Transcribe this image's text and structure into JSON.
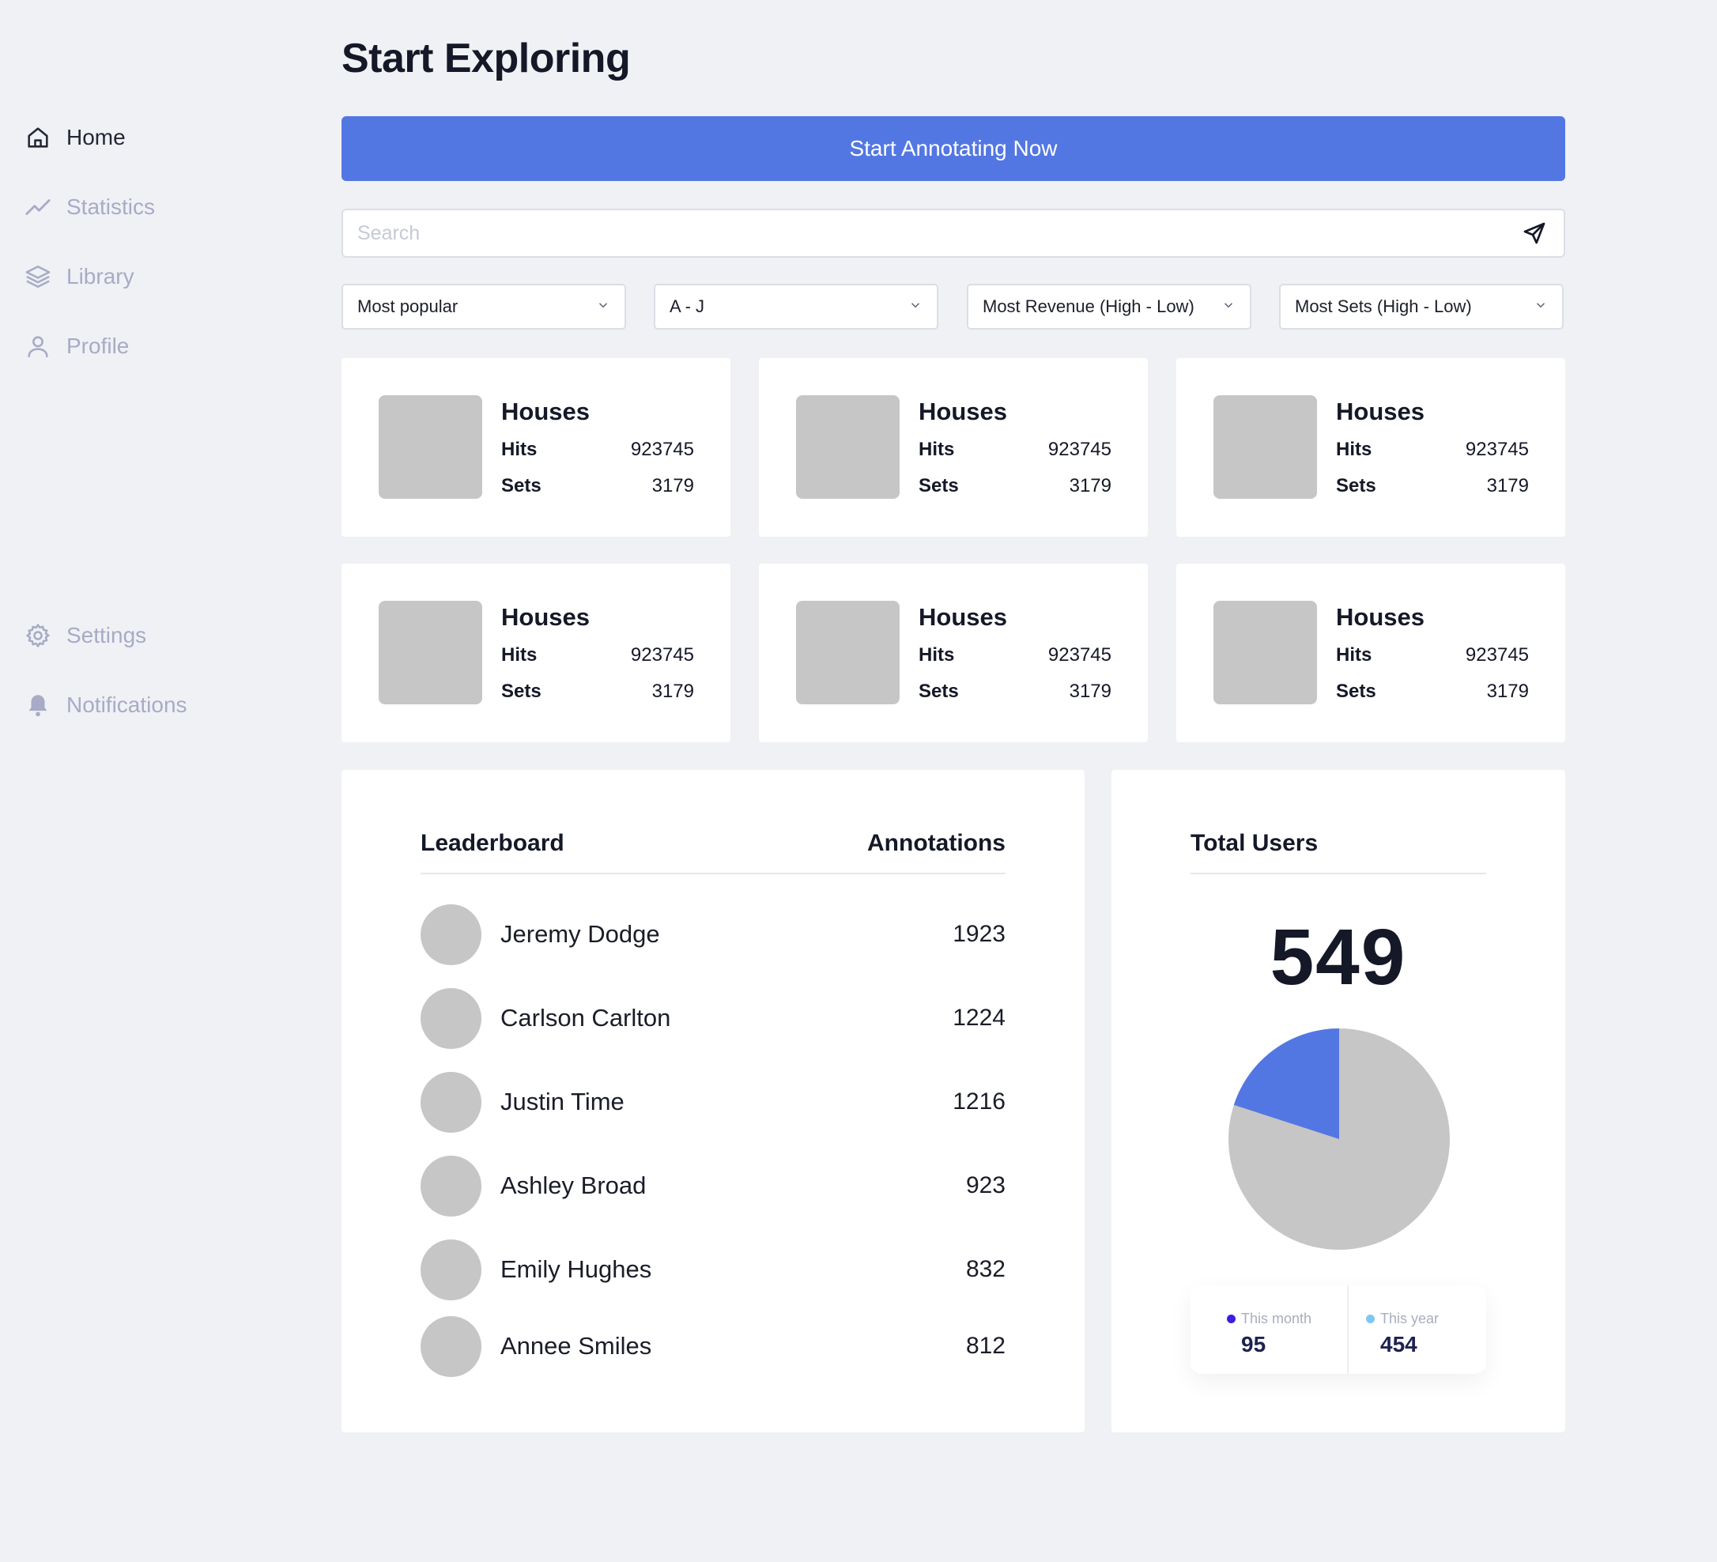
{
  "sidebar": {
    "items": [
      {
        "label": "Home",
        "icon": "home-icon",
        "active": true
      },
      {
        "label": "Statistics",
        "icon": "trend-icon"
      },
      {
        "label": "Library",
        "icon": "layers-icon"
      },
      {
        "label": "Profile",
        "icon": "user-icon"
      }
    ],
    "bottom_items": [
      {
        "label": "Settings",
        "icon": "gear-icon"
      },
      {
        "label": "Notifications",
        "icon": "bell-icon"
      }
    ]
  },
  "main": {
    "title": "Start Exploring",
    "cta_label": "Start Annotating Now",
    "search": {
      "placeholder": "Search",
      "value": ""
    },
    "filters": [
      {
        "selected": "Most popular"
      },
      {
        "selected": "A - J"
      },
      {
        "selected": "Most Revenue (High - Low)"
      },
      {
        "selected": "Most Sets (High - Low)"
      }
    ],
    "cards": [
      {
        "title": "Houses",
        "hits_label": "Hits",
        "hits": "923745",
        "sets_label": "Sets",
        "sets": "3179"
      },
      {
        "title": "Houses",
        "hits_label": "Hits",
        "hits": "923745",
        "sets_label": "Sets",
        "sets": "3179"
      },
      {
        "title": "Houses",
        "hits_label": "Hits",
        "hits": "923745",
        "sets_label": "Sets",
        "sets": "3179"
      },
      {
        "title": "Houses",
        "hits_label": "Hits",
        "hits": "923745",
        "sets_label": "Sets",
        "sets": "3179"
      },
      {
        "title": "Houses",
        "hits_label": "Hits",
        "hits": "923745",
        "sets_label": "Sets",
        "sets": "3179"
      },
      {
        "title": "Houses",
        "hits_label": "Hits",
        "hits": "923745",
        "sets_label": "Sets",
        "sets": "3179"
      }
    ]
  },
  "leaderboard": {
    "title": "Leaderboard",
    "score_header": "Annotations",
    "rows": [
      {
        "name": "Jeremy Dodge",
        "score": "1923"
      },
      {
        "name": "Carlson Carlton",
        "score": "1224"
      },
      {
        "name": "Justin Time",
        "score": "1216"
      },
      {
        "name": "Ashley Broad",
        "score": "923"
      },
      {
        "name": "Emily Hughes",
        "score": "832"
      },
      {
        "name": "Annee Smiles",
        "score": "812"
      }
    ]
  },
  "total_users": {
    "title": "Total Users",
    "total": "549",
    "legend": [
      {
        "label": "This month",
        "value": "95",
        "color": "#3a1fe0"
      },
      {
        "label": "This year",
        "value": "454",
        "color": "#7ec7f0"
      }
    ],
    "pie": {
      "highlight_fraction": 0.2,
      "highlight_color": "#5377e2",
      "base_color": "#c6c6c6"
    }
  },
  "colors": {
    "accent": "#5377e2",
    "background": "#f0f1f5",
    "muted_nav": "#a7abc6"
  }
}
